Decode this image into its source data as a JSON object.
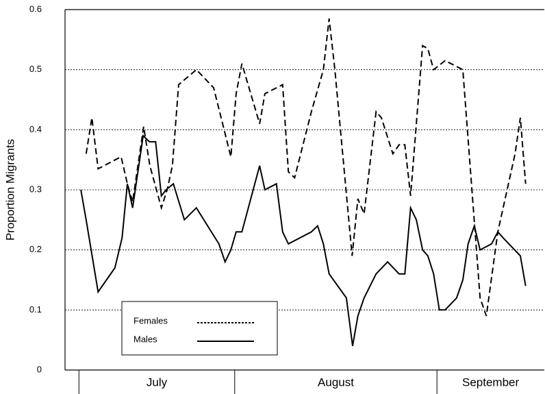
{
  "chart_data": {
    "type": "line",
    "y_label": "Proportion Migrants",
    "xlim": [
      0,
      100
    ],
    "x_sections": [
      {
        "label": "July",
        "range": [
          2.9,
          35.4
        ]
      },
      {
        "label": "August",
        "range": [
          35.4,
          77.6
        ]
      },
      {
        "label": "September",
        "range": [
          77.6,
          100
        ]
      }
    ],
    "ylim": [
      0,
      0.6
    ],
    "yticks": [
      0,
      0.1,
      0.2,
      0.3,
      0.4,
      0.5,
      0.6
    ],
    "grid": true,
    "series": [
      {
        "name": "Females",
        "color": "#000",
        "dash": "dashed",
        "x": [
          4.4,
          5.6,
          6.9,
          11.7,
          13,
          14.1,
          16.4,
          17.7,
          20.1,
          21.3,
          22.4,
          23.7,
          27.4,
          31,
          34.6,
          35.7,
          36.9,
          40.6,
          41.7,
          45.4,
          46.6,
          47.9,
          51.4,
          53.9,
          55.1,
          56.3,
          59.9,
          61.1,
          62.4,
          64.9,
          66,
          68.4,
          69.7,
          70.9,
          72.1,
          74.6,
          75.7,
          76.9,
          79.3,
          83,
          86.6,
          87.9,
          90.3,
          93.9,
          95,
          96.1
        ],
        "values": [
          0.36,
          0.42,
          0.335,
          0.355,
          0.31,
          0.28,
          0.405,
          0.34,
          0.27,
          0.3,
          0.34,
          0.475,
          0.5,
          0.47,
          0.355,
          0.46,
          0.51,
          0.41,
          0.46,
          0.475,
          0.33,
          0.32,
          0.43,
          0.5,
          0.585,
          0.5,
          0.19,
          0.285,
          0.26,
          0.43,
          0.42,
          0.36,
          0.375,
          0.375,
          0.29,
          0.54,
          0.535,
          0.5,
          0.515,
          0.5,
          0.12,
          0.09,
          0.23,
          0.36,
          0.42,
          0.31
        ]
      },
      {
        "name": "Males",
        "color": "#000",
        "dash": "solid",
        "x": [
          3.3,
          4.4,
          6.9,
          10.4,
          11.9,
          13,
          14.1,
          16.3,
          17.6,
          18.9,
          20.1,
          21.1,
          22.6,
          24.9,
          27.4,
          32.1,
          33.4,
          34.6,
          35.7,
          36.9,
          40.6,
          41.7,
          44.1,
          45.4,
          46.6,
          51.4,
          52.7,
          53.9,
          55.1,
          58.7,
          60,
          61.1,
          62.4,
          64.9,
          67.3,
          69.7,
          70.9,
          72.1,
          73.3,
          74.6,
          75.7,
          76.9,
          78.1,
          79.3,
          81.7,
          83,
          84.1,
          85.4,
          86.6,
          89,
          90.3,
          91.4,
          95,
          96.1
        ],
        "values": [
          0.3,
          0.25,
          0.13,
          0.17,
          0.22,
          0.31,
          0.27,
          0.39,
          0.38,
          0.38,
          0.29,
          0.3,
          0.31,
          0.25,
          0.27,
          0.21,
          0.18,
          0.2,
          0.23,
          0.23,
          0.34,
          0.3,
          0.31,
          0.23,
          0.21,
          0.23,
          0.24,
          0.21,
          0.16,
          0.12,
          0.04,
          0.09,
          0.12,
          0.16,
          0.18,
          0.16,
          0.16,
          0.27,
          0.25,
          0.2,
          0.19,
          0.16,
          0.1,
          0.1,
          0.12,
          0.15,
          0.21,
          0.24,
          0.2,
          0.21,
          0.23,
          0.22,
          0.19,
          0.14
        ]
      }
    ]
  }
}
